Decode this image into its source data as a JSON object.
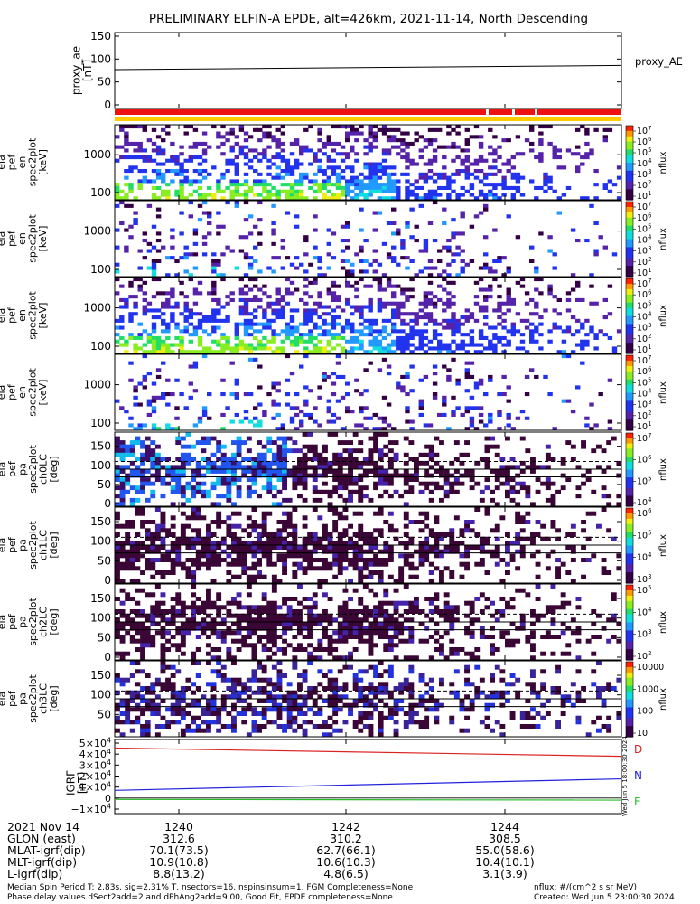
{
  "title": "PRELIMINARY ELFIN-A EPDE, alt=426km, 2021-11-14, North Descending",
  "time_axis": {
    "ticks": [
      "1240",
      "1242",
      "1244"
    ],
    "date_label": "2021 Nov 14",
    "rows": [
      {
        "label": "GLON (east)",
        "values": [
          "312.6",
          "310.2",
          "308.5"
        ]
      },
      {
        "label": "MLAT-igrf(dip)",
        "values": [
          "70.1(73.5)",
          "62.7(66.1)",
          "55.0(58.6)"
        ]
      },
      {
        "label": "MLT-igrf(dip)",
        "values": [
          "10.9(10.8)",
          "10.6(10.3)",
          "10.4(10.1)"
        ]
      },
      {
        "label": "L-igrf(dip)",
        "values": [
          "8.8(13.2)",
          "4.8(6.5)",
          "3.1(3.9)"
        ]
      }
    ]
  },
  "footer": {
    "line1": "Median Spin Period T: 2.83s, sig=2.31% T, nsectors=16, nspinsinsum=1, FGM Completeness=None",
    "line2": "Phase delay values dSect2add=2 and dPhAng2add=9.00, Good Fit, EPDE completeness=None",
    "units": "nflux: #/(cm^2 s sr MeV)",
    "created": "Created: Wed Jun  5 23:00:30 2024"
  },
  "side_stamp": "Wed Jun  5 18:00:30 2024",
  "colors": {
    "status_bar_red": "#ee1111",
    "status_bar_yellow": "#ffcc00",
    "line_D": "#dd2222",
    "line_N": "#2222dd",
    "line_E": "#22bb22"
  },
  "chart_data": [
    {
      "type": "line",
      "ylabel": [
        "proxy_ae",
        "[nT]"
      ],
      "yticks": [
        "150",
        "100",
        "50",
        "0"
      ],
      "ylim": [
        -10,
        155
      ],
      "legend": "proxy_AE",
      "x": [
        "1239",
        "1246"
      ],
      "values": [
        77,
        86
      ]
    },
    {
      "type": "heatmap",
      "ylabel": [
        "ela",
        "pef",
        "en",
        "spec2plot",
        "[keV]"
      ],
      "yticks": [
        "1000",
        "100"
      ],
      "colorbar": {
        "ticks": [
          "10^7",
          "10^6",
          "10^5",
          "10^4",
          "10^3",
          "10^2",
          "10^1"
        ],
        "label": "nflux"
      }
    },
    {
      "type": "heatmap",
      "ylabel": [
        "ela",
        "pef",
        "en",
        "spec2plot",
        "[keV]"
      ],
      "yticks": [
        "1000",
        "100"
      ],
      "colorbar": {
        "ticks": [
          "10^7",
          "10^6",
          "10^5",
          "10^4",
          "10^3",
          "10^2",
          "10^1"
        ],
        "label": "nflux"
      }
    },
    {
      "type": "heatmap",
      "ylabel": [
        "ela",
        "pef",
        "en",
        "spec2plot",
        "[keV]"
      ],
      "yticks": [
        "1000",
        "100"
      ],
      "colorbar": {
        "ticks": [
          "10^7",
          "10^6",
          "10^5",
          "10^4",
          "10^3",
          "10^2",
          "10^1"
        ],
        "label": "nflux"
      }
    },
    {
      "type": "heatmap",
      "ylabel": [
        "ela",
        "pef",
        "en",
        "spec2plot",
        "[keV]"
      ],
      "yticks": [
        "1000",
        "100"
      ],
      "colorbar": {
        "ticks": [
          "10^7",
          "10^6",
          "10^5",
          "10^4",
          "10^3",
          "10^2",
          "10^1"
        ],
        "label": "nflux"
      }
    },
    {
      "type": "heatmap",
      "ylabel": [
        "ela",
        "pef",
        "pa",
        "spec2plot",
        "ch0LC",
        "[deg]"
      ],
      "yticks": [
        "150",
        "100",
        "50",
        "0"
      ],
      "colorbar": {
        "ticks": [
          "10^7",
          "10^6",
          "10^5",
          "10^4"
        ],
        "label": "nflux"
      }
    },
    {
      "type": "heatmap",
      "ylabel": [
        "ela",
        "pef",
        "pa",
        "spec2plot",
        "ch1LC",
        "[deg]"
      ],
      "yticks": [
        "150",
        "100",
        "50",
        "0"
      ],
      "colorbar": {
        "ticks": [
          "10^6",
          "10^5",
          "10^4",
          "10^3"
        ],
        "label": "nflux"
      }
    },
    {
      "type": "heatmap",
      "ylabel": [
        "ela",
        "pef",
        "pa",
        "spec2plot",
        "ch2LC",
        "[deg]"
      ],
      "yticks": [
        "150",
        "100",
        "50",
        "0"
      ],
      "colorbar": {
        "ticks": [
          "10^5",
          "10^4",
          "10^3",
          "10^2"
        ],
        "label": "nflux"
      }
    },
    {
      "type": "heatmap",
      "ylabel": [
        "ela",
        "pef",
        "pa",
        "spec2plot",
        "ch3LC",
        "[deg]"
      ],
      "yticks": [
        "150",
        "100",
        "50"
      ],
      "colorbar": {
        "ticks": [
          "10000",
          "1000",
          "100",
          "10"
        ],
        "label": "nflux"
      }
    },
    {
      "type": "line",
      "ylabel": [
        "IGRF",
        "[nT]"
      ],
      "yticks": [
        "5×10^4",
        "4×10^4",
        "3×10^4",
        "2×10^4",
        "1×10^4",
        "0",
        "−1×10^4"
      ],
      "ylim": [
        -12000,
        50000
      ],
      "x": [
        "1239",
        "1246"
      ],
      "series": [
        {
          "name": "D",
          "values": [
            45500,
            38000
          ]
        },
        {
          "name": "N",
          "values": [
            7000,
            17500
          ]
        },
        {
          "name": "E",
          "values": [
            -1200,
            -1800
          ]
        }
      ]
    }
  ]
}
